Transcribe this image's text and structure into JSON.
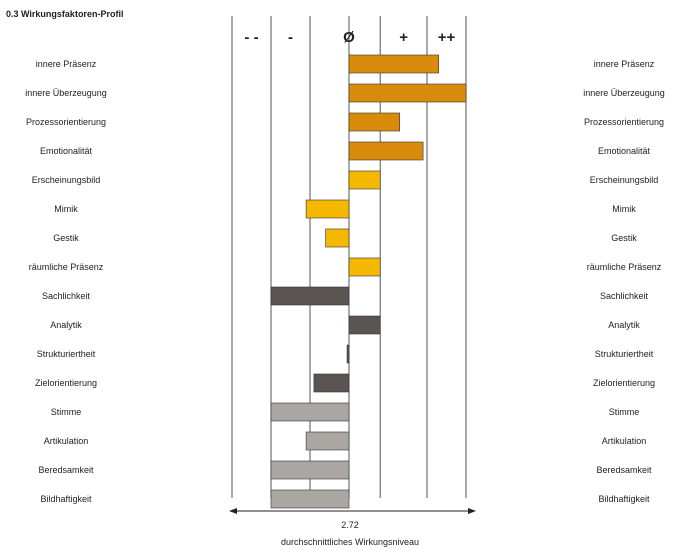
{
  "chart_data": {
    "type": "bar",
    "title": "0.3  Wirkungsfaktoren-Profil",
    "orientation": "horizontal-diverging",
    "scale_labels": [
      "- -",
      "-",
      "Ø",
      "+",
      "++"
    ],
    "xlim": [
      -2,
      3
    ],
    "baseline": 0,
    "grid": true,
    "categories": [
      "innere Präsenz",
      "innere Überzeugung",
      "Prozessorientierung",
      "Emotionalität",
      "Erscheinungsbild",
      "Mimik",
      "Gestik",
      "räumliche Präsenz",
      "Sachlichkeit",
      "Analytik",
      "Strukturiertheit",
      "Zielorientierung",
      "Stimme",
      "Artikulation",
      "Beredsamkeit",
      "Bildhaftigkeit"
    ],
    "values": [
      2.3,
      3.0,
      1.3,
      1.9,
      0.8,
      -1.1,
      -0.6,
      0.8,
      -2.0,
      0.8,
      -0.05,
      -0.9,
      -2.0,
      -1.1,
      -2.0,
      -2.0
    ],
    "colors": [
      "#d98c0c",
      "#d98c0c",
      "#d98c0c",
      "#d98c0c",
      "#f5b800",
      "#f5b800",
      "#f5b800",
      "#f5b800",
      "#5a5552",
      "#5a5552",
      "#5a5552",
      "#5a5552",
      "#aaa7a3",
      "#aaa7a3",
      "#aaa7a3",
      "#aaa7a3"
    ],
    "overall_value": "2.72",
    "overall_label": "durchschnittliches Wirkungsniveau"
  }
}
